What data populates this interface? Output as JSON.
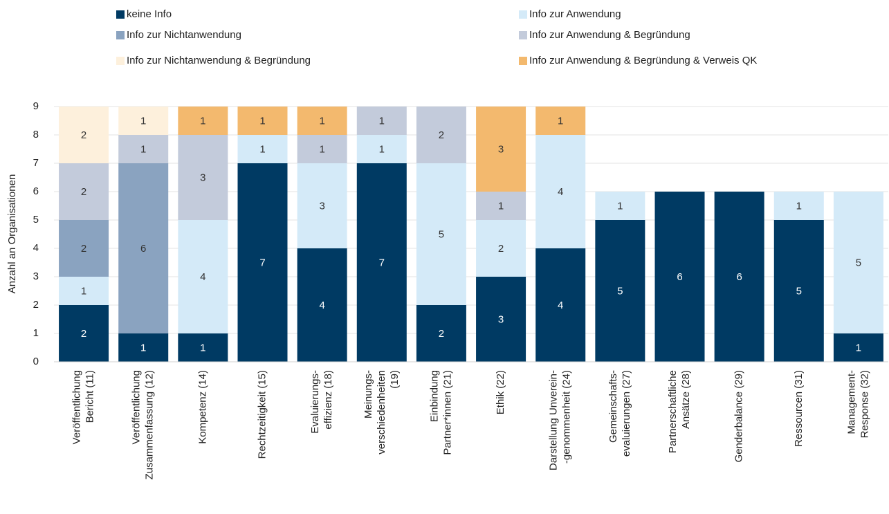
{
  "chart_data": {
    "type": "stacked_bar",
    "y_label": "Anzahl an Organisationen",
    "categories": [
      [
        "Veröffentlichung",
        "Bericht (11)"
      ],
      [
        "Veröffentlichung",
        "Zusammenfassung (12)"
      ],
      [
        "Kompetenz (14)"
      ],
      [
        "Rechtzeitigkeit  (15)"
      ],
      [
        "Evaluierungs-",
        "effizienz (18)"
      ],
      [
        "Meinungs-",
        "verschiedenheiten",
        "(19)"
      ],
      [
        "Einbindung",
        "Partner*innen (21)"
      ],
      [
        "Ethik (22)"
      ],
      [
        "Darstellung Unverein-",
        "-genommenheit  (24)"
      ],
      [
        "Gemeinschafts-",
        "evaluierungen (27)"
      ],
      [
        "Partnerschaftliche",
        "Ansätze (28)"
      ],
      [
        "Genderbalance (29)"
      ],
      [
        "Ressourcen  (31)"
      ],
      [
        "Management-",
        "Response (32)"
      ]
    ],
    "series": [
      {
        "name": "keine Info",
        "color": "#003a63",
        "values": [
          2,
          1,
          1,
          7,
          4,
          7,
          2,
          3,
          4,
          5,
          6,
          6,
          5,
          1
        ]
      },
      {
        "name": "Info zur Anwendung",
        "color": "#d4eaf8",
        "values": [
          1,
          null,
          4,
          1,
          3,
          1,
          5,
          2,
          4,
          1,
          null,
          null,
          1,
          5
        ]
      },
      {
        "name": "Info zur Nichtanwendung",
        "color": "#8aa3c0",
        "values": [
          2,
          6,
          null,
          null,
          null,
          null,
          null,
          null,
          null,
          null,
          null,
          null,
          null,
          null
        ]
      },
      {
        "name": "Info zur Anwendung & Begründung",
        "color": "#c3cbdb",
        "values": [
          2,
          1,
          3,
          null,
          1,
          1,
          2,
          1,
          null,
          null,
          null,
          null,
          null,
          null
        ]
      },
      {
        "name": "Info zur Nichtanwendung & Begründung",
        "color": "#fdf0dc",
        "values": [
          2,
          1,
          null,
          null,
          null,
          null,
          null,
          null,
          null,
          null,
          null,
          null,
          null,
          null
        ]
      },
      {
        "name": "Info zur Anwendung & Begründung & Verweis QK",
        "color": "#f3b96e",
        "values": [
          null,
          null,
          1,
          1,
          1,
          null,
          null,
          3,
          1,
          null,
          null,
          null,
          null,
          null
        ]
      }
    ],
    "ylim": [
      0,
      9
    ],
    "yticks": [
      0,
      1,
      2,
      3,
      4,
      5,
      6,
      7,
      8,
      9
    ],
    "grid": true
  }
}
